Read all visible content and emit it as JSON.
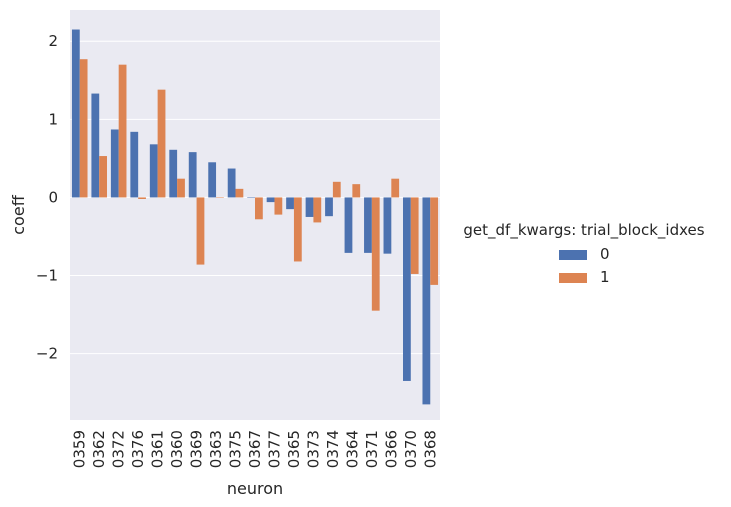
{
  "chart_data": {
    "type": "bar",
    "xlabel": "neuron",
    "ylabel": "coeff",
    "ylim": [
      -2.85,
      2.4
    ],
    "yticks": [
      2,
      1,
      0,
      -1,
      -2
    ],
    "ytick_labels": [
      "2",
      "1",
      "0",
      "−1",
      "−2"
    ],
    "grid": true,
    "legend_position": "right",
    "legend_title": "get_df_kwargs: trial_block_idxes",
    "categories": [
      "0359",
      "0362",
      "0372",
      "0376",
      "0361",
      "0360",
      "0369",
      "0363",
      "0375",
      "0367",
      "0377",
      "0365",
      "0373",
      "0374",
      "0364",
      "0371",
      "0366",
      "0370",
      "0368"
    ],
    "series": [
      {
        "name": "0",
        "color": "#4c72b0",
        "values": [
          2.15,
          1.33,
          0.87,
          0.84,
          0.68,
          0.61,
          0.58,
          0.45,
          0.37,
          0.0,
          -0.06,
          -0.15,
          -0.25,
          -0.24,
          -0.71,
          -0.71,
          -0.72,
          -2.35,
          -2.65
        ]
      },
      {
        "name": "1",
        "color": "#dd8452",
        "values": [
          1.77,
          0.53,
          1.7,
          -0.02,
          1.38,
          0.24,
          -0.86,
          0.0,
          0.11,
          -0.28,
          -0.22,
          -0.82,
          -0.32,
          0.2,
          0.17,
          -1.45,
          0.24,
          -0.98,
          -1.12
        ]
      }
    ]
  }
}
